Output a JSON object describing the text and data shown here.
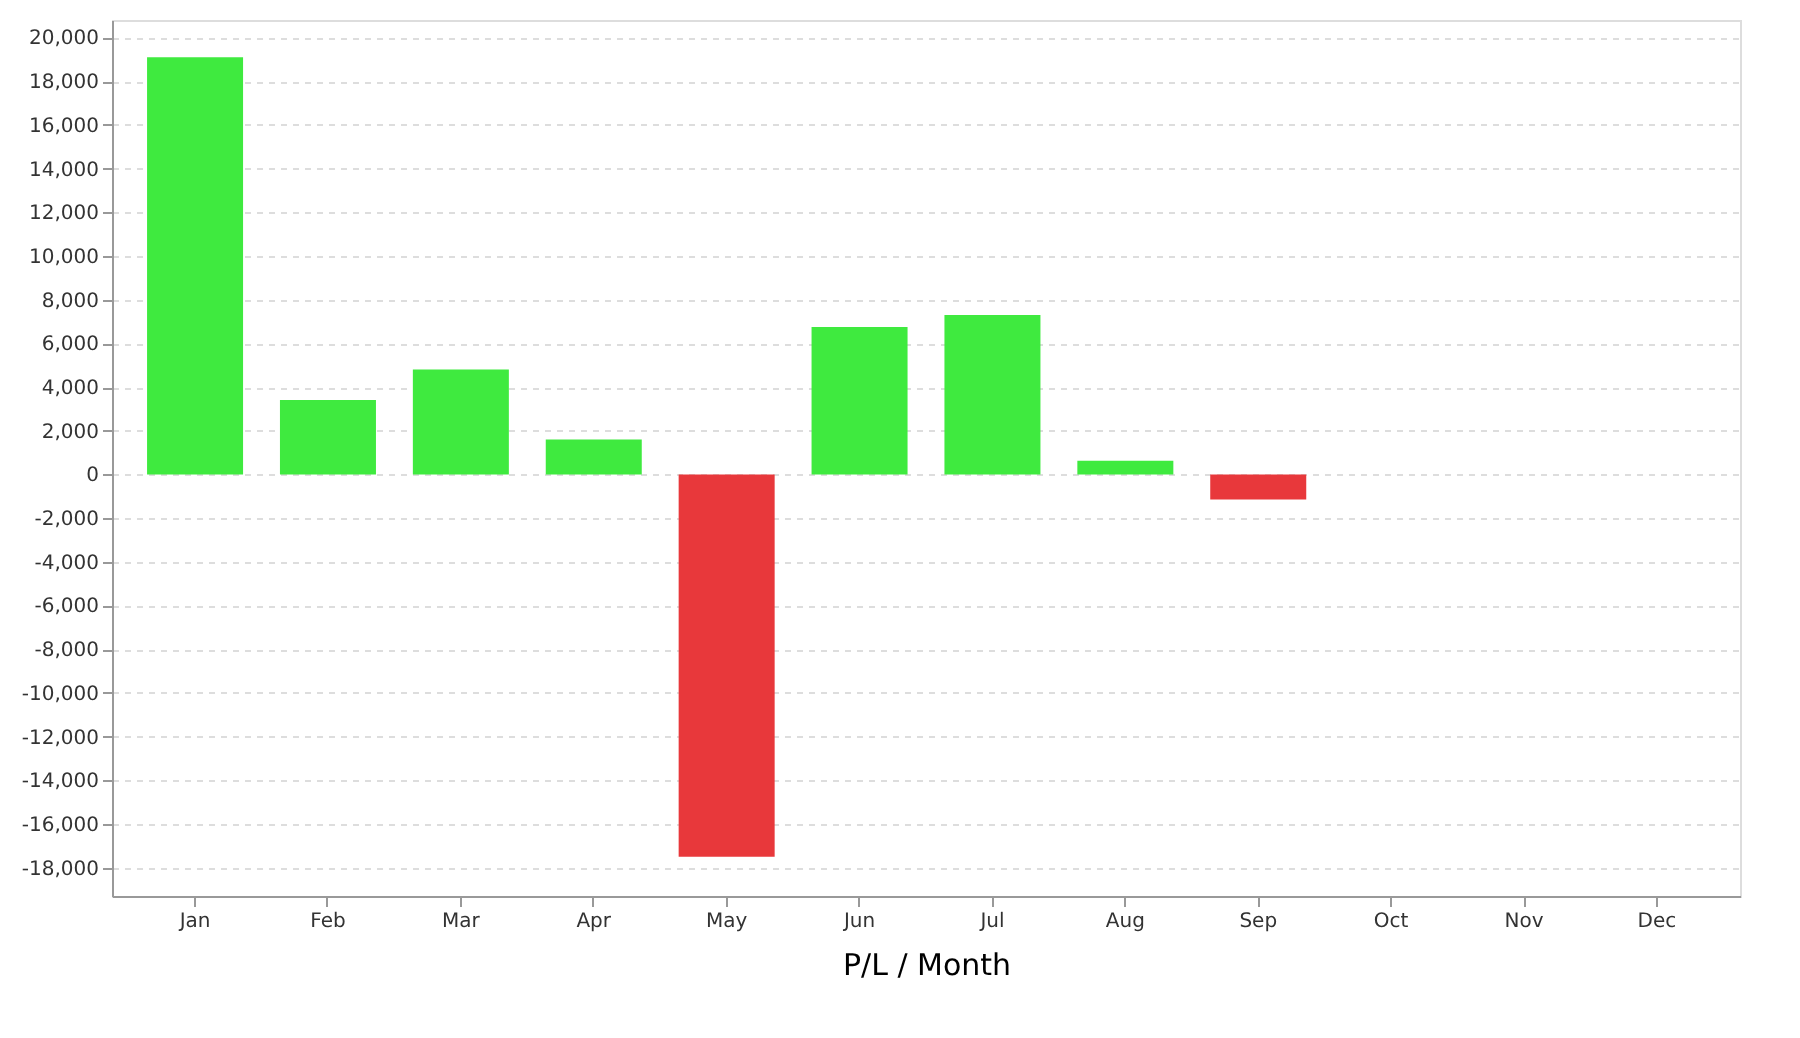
{
  "chart_data": {
    "type": "bar",
    "xlabel": "P/L / Month",
    "categories": [
      "Jan",
      "Feb",
      "Mar",
      "Apr",
      "May",
      "Jun",
      "Jul",
      "Aug",
      "Sep",
      "Oct",
      "Nov",
      "Dec"
    ],
    "values": [
      19100,
      3400,
      4800,
      1600,
      -17500,
      6750,
      7300,
      620,
      -1150,
      null,
      null,
      null
    ],
    "colors": [
      "#3fea3f",
      "#3fea3f",
      "#3fea3f",
      "#3fea3f",
      "#e8383b",
      "#3fea3f",
      "#3fea3f",
      "#3fea3f",
      "#e8383b",
      null,
      null,
      null
    ],
    "ylim": [
      -19300,
      20800
    ],
    "yticks": [
      {
        "value": -18000,
        "label": "-18,000"
      },
      {
        "value": -16000,
        "label": "-16,000"
      },
      {
        "value": -14000,
        "label": "-14,000"
      },
      {
        "value": -12000,
        "label": "-12,000"
      },
      {
        "value": -10000,
        "label": "-10,000"
      },
      {
        "value": -8000,
        "label": "-8,000"
      },
      {
        "value": -6000,
        "label": "-6,000"
      },
      {
        "value": -4000,
        "label": "-4,000"
      },
      {
        "value": -2000,
        "label": "-2,000"
      },
      {
        "value": 0,
        "label": "0"
      },
      {
        "value": 2000,
        "label": "2,000"
      },
      {
        "value": 4000,
        "label": "4,000"
      },
      {
        "value": 6000,
        "label": "6,000"
      },
      {
        "value": 8000,
        "label": "8,000"
      },
      {
        "value": 10000,
        "label": "10,000"
      },
      {
        "value": 12000,
        "label": "12,000"
      },
      {
        "value": 14000,
        "label": "14,000"
      },
      {
        "value": 16000,
        "label": "16,000"
      },
      {
        "value": 18000,
        "label": "18,000"
      },
      {
        "value": 20000,
        "label": "20,000"
      }
    ],
    "grid": "y"
  }
}
